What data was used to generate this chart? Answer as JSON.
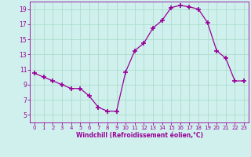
{
  "hours": [
    0,
    1,
    2,
    3,
    4,
    5,
    6,
    7,
    8,
    9,
    10,
    11,
    12,
    13,
    14,
    15,
    16,
    17,
    18,
    19,
    20,
    21,
    22,
    23
  ],
  "values": [
    10.5,
    10.0,
    9.5,
    9.0,
    8.5,
    8.5,
    7.5,
    6.0,
    5.5,
    5.5,
    10.7,
    13.5,
    14.5,
    16.5,
    17.5,
    19.2,
    19.5,
    19.3,
    19.0,
    17.2,
    13.5,
    12.5,
    9.5,
    9.5
  ],
  "line_color": "#990099",
  "marker": "+",
  "marker_size": 5,
  "bg_color": "#cff0ec",
  "grid_color": "#aaddcc",
  "xlabel": "Windchill (Refroidissement éolien,°C)",
  "xlabel_color": "#990099",
  "tick_color": "#990099",
  "ylim": [
    4,
    20
  ],
  "xlim": [
    -0.5,
    23.5
  ],
  "yticks": [
    5,
    7,
    9,
    11,
    13,
    15,
    17,
    19
  ],
  "xticks": [
    0,
    1,
    2,
    3,
    4,
    5,
    6,
    7,
    8,
    9,
    10,
    11,
    12,
    13,
    14,
    15,
    16,
    17,
    18,
    19,
    20,
    21,
    22,
    23
  ],
  "figsize": [
    3.2,
    2.0
  ],
  "dpi": 100
}
